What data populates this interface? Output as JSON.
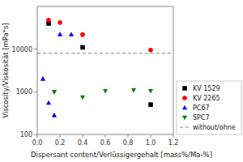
{
  "chart_data": {
    "type": "scatter",
    "xlabel": "Dispersant content/Verlüssigergehalt [mass%/Ma-%]",
    "ylabel": "Viscosity/Viskosität [mPa*s]",
    "log": "y",
    "xlim": [
      0.0,
      1.2
    ],
    "ylim": [
      100,
      100000
    ],
    "xticks": [
      {
        "value": 0.0,
        "label": "0.0"
      },
      0.2,
      0.4,
      0.6,
      0.8,
      {
        "value": 1.0,
        "label": "1.0"
      },
      1.2
    ],
    "yticks": [
      100,
      1000,
      10000
    ],
    "legend": "lower right",
    "grid": false,
    "series": [
      {
        "name": "KV 1529",
        "color": "black",
        "marker": "square",
        "x": [
          0.1,
          0.4,
          1.0
        ],
        "values": [
          40000,
          11000,
          500
        ]
      },
      {
        "name": "KV 2265",
        "color": "red",
        "marker": "circle",
        "x": [
          0.1,
          0.2,
          0.4,
          1.0
        ],
        "values": [
          48000,
          42000,
          22000,
          9500
        ]
      },
      {
        "name": "PC67",
        "color": "blue",
        "marker": "triangle-up",
        "x": [
          0.05,
          0.1,
          0.15,
          0.2,
          0.3
        ],
        "values": [
          2000,
          550,
          280,
          22000,
          22000
        ]
      },
      {
        "name": "SPC7",
        "color": "green",
        "marker": "triangle-down",
        "x": [
          0.15,
          0.4,
          0.6,
          0.85,
          1.0
        ],
        "values": [
          1000,
          750,
          1050,
          1100,
          1050
        ]
      },
      {
        "name": "without/ohne",
        "type": "hline",
        "color": "gray",
        "line_style": "dashed",
        "values": [
          8000
        ]
      }
    ]
  }
}
